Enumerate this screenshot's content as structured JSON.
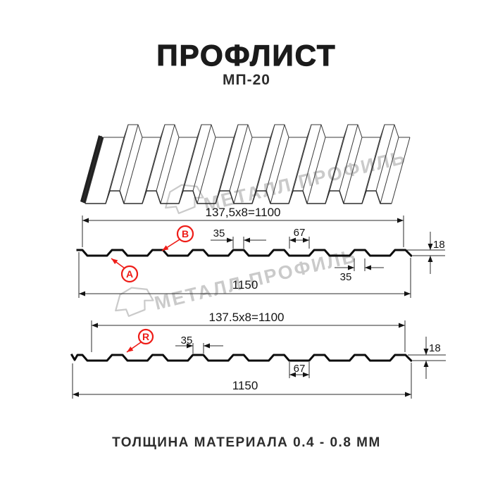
{
  "title": "ПРОФЛИСТ",
  "subtitle": "МП-20",
  "footer": "ТОЛЩИНА МАТЕРИАЛА 0.4 - 0.8 ММ",
  "watermark": {
    "text": "МЕТАЛЛ ПРОФИЛЬ"
  },
  "colors": {
    "accent_red": "#ee1c17",
    "drawing_line": "#0d0d0d",
    "watermark_gray": "#cacaca"
  },
  "profile_top": {
    "width_formula": "137,5x8=1100",
    "total_width": "1150",
    "rib_top_width": "35",
    "valley_width": "67",
    "height": "18",
    "rib_bottom_width": "35",
    "label_a": "A",
    "label_b": "B"
  },
  "profile_bottom": {
    "width_formula": "137.5x8=1100",
    "total_width": "1150",
    "rib_top_width": "35",
    "valley_width": "67",
    "height": "18",
    "label_r": "R"
  }
}
